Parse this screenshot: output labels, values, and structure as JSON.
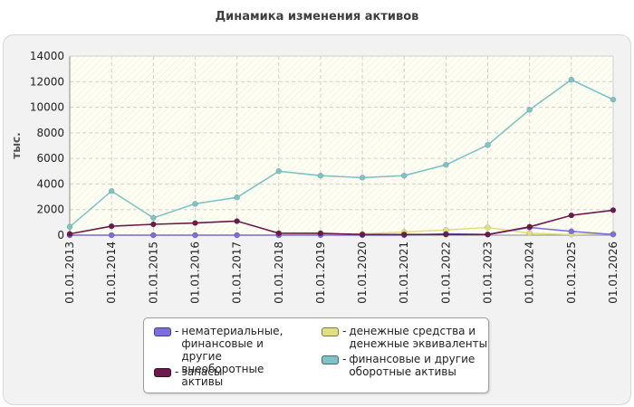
{
  "chart_data": {
    "type": "line",
    "title": "Динамика изменения активов",
    "ylabel": "тыс.",
    "xlabel": "",
    "ylim": [
      0,
      14000
    ],
    "yticks": [
      0,
      2000,
      4000,
      6000,
      8000,
      10000,
      12000,
      14000
    ],
    "grid": true,
    "legend_position": "bottom",
    "categories": [
      "01.01.2013",
      "01.01.2014",
      "01.01.2015",
      "01.01.2016",
      "01.01.2017",
      "01.01.2018",
      "01.01.2019",
      "01.01.2020",
      "01.01.2021",
      "01.01.2022",
      "01.01.2023",
      "01.01.2024",
      "01.01.2025",
      "01.01.2026"
    ],
    "series": [
      {
        "name": "нематериальные, финансовые и другие внеоборотные активы",
        "color": "#7b6fe0",
        "values": [
          0,
          0,
          0,
          0,
          0,
          0,
          0,
          0,
          0,
          100,
          50,
          600,
          300,
          50
        ]
      },
      {
        "name": "запасы",
        "color": "#6b1a4a",
        "values": [
          100,
          700,
          850,
          950,
          1100,
          150,
          150,
          50,
          50,
          50,
          50,
          650,
          1550,
          1950
        ]
      },
      {
        "name": "денежные средства и денежные эквиваленты",
        "color": "#e0e080",
        "values": [
          0,
          0,
          0,
          0,
          0,
          0,
          50,
          100,
          250,
          400,
          600,
          150,
          50,
          100
        ]
      },
      {
        "name": "финансовые и другие оборотные активы",
        "color": "#7fc4c4",
        "values": [
          650,
          3450,
          1350,
          2450,
          2950,
          5000,
          4650,
          4500,
          4650,
          5500,
          7050,
          9800,
          12150,
          10600
        ]
      }
    ]
  }
}
